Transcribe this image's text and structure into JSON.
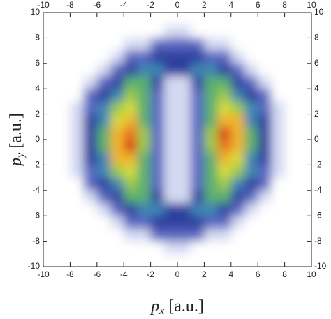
{
  "chart_data": {
    "type": "heatmap",
    "xlabel": {
      "symbol": "p",
      "subscript": "x",
      "unit": "[a.u.]"
    },
    "ylabel": {
      "symbol": "p",
      "subscript": "y",
      "unit": "[a.u.]"
    },
    "xlim": [
      -10,
      10
    ],
    "ylim": [
      -10,
      10
    ],
    "xticks": [
      -10,
      -8,
      -6,
      -4,
      -2,
      0,
      2,
      4,
      6,
      8,
      10
    ],
    "yticks": [
      -10,
      -8,
      -6,
      -4,
      -2,
      0,
      2,
      4,
      6,
      8,
      10
    ],
    "x": [
      -9.5,
      -8.5,
      -7.5,
      -6.5,
      -5.5,
      -4.5,
      -3.5,
      -2.5,
      -1.5,
      -0.5,
      0.5,
      1.5,
      2.5,
      3.5,
      4.5,
      5.5,
      6.5,
      7.5,
      8.5,
      9.5
    ],
    "y": [
      9.5,
      8.5,
      7.5,
      6.5,
      5.5,
      4.5,
      3.5,
      2.5,
      1.5,
      0.5,
      -0.5,
      -1.5,
      -2.5,
      -3.5,
      -4.5,
      -5.5,
      -6.5,
      -7.5,
      -8.5,
      -9.5
    ],
    "values": [
      [
        0,
        0,
        0,
        0,
        0,
        0,
        0,
        0,
        0,
        0,
        0,
        0,
        0,
        0,
        0,
        0,
        0,
        0,
        0,
        0
      ],
      [
        0,
        0,
        0,
        0,
        0,
        0,
        0,
        0,
        0,
        1,
        1,
        0,
        0,
        0,
        0,
        0,
        0,
        0,
        0,
        0
      ],
      [
        0,
        0,
        0,
        0,
        0,
        0,
        1,
        1,
        2,
        2,
        2,
        2,
        1,
        1,
        0,
        0,
        0,
        0,
        0,
        0
      ],
      [
        0,
        0,
        0,
        0,
        0,
        1,
        2,
        2,
        3,
        3,
        3,
        3,
        2,
        2,
        1,
        0,
        0,
        0,
        0,
        0
      ],
      [
        0,
        0,
        0,
        0,
        1,
        2,
        3,
        4,
        4,
        3,
        3,
        4,
        4,
        3,
        2,
        1,
        0,
        0,
        0,
        0
      ],
      [
        0,
        0,
        0,
        1,
        2,
        3,
        5,
        5,
        3,
        1,
        1,
        3,
        5,
        5,
        3,
        2,
        1,
        0,
        0,
        0
      ],
      [
        0,
        0,
        0,
        2,
        3,
        4,
        6,
        5,
        2,
        1,
        1,
        2,
        5,
        6,
        4,
        3,
        2,
        0,
        0,
        0
      ],
      [
        0,
        0,
        1,
        2,
        4,
        6,
        7,
        5,
        2,
        1,
        1,
        2,
        5,
        7,
        6,
        4,
        2,
        1,
        0,
        0
      ],
      [
        0,
        0,
        1,
        3,
        4,
        7,
        8,
        5,
        2,
        1,
        1,
        2,
        5,
        8,
        8,
        4,
        3,
        1,
        0,
        0
      ],
      [
        0,
        0,
        1,
        3,
        5,
        8,
        9,
        6,
        2,
        1,
        1,
        2,
        6,
        10,
        8,
        5,
        3,
        1,
        0,
        0
      ],
      [
        0,
        0,
        1,
        3,
        5,
        8,
        10,
        6,
        2,
        1,
        1,
        2,
        6,
        9,
        8,
        5,
        3,
        1,
        0,
        0
      ],
      [
        0,
        0,
        1,
        3,
        4,
        8,
        8,
        5,
        2,
        1,
        1,
        2,
        5,
        8,
        7,
        4,
        3,
        1,
        0,
        0
      ],
      [
        0,
        0,
        1,
        2,
        4,
        6,
        7,
        5,
        2,
        1,
        1,
        2,
        5,
        7,
        6,
        4,
        2,
        1,
        0,
        0
      ],
      [
        0,
        0,
        0,
        2,
        3,
        4,
        6,
        5,
        2,
        1,
        1,
        2,
        5,
        6,
        4,
        3,
        2,
        0,
        0,
        0
      ],
      [
        0,
        0,
        0,
        1,
        2,
        3,
        5,
        5,
        3,
        1,
        1,
        3,
        5,
        5,
        3,
        2,
        1,
        0,
        0,
        0
      ],
      [
        0,
        0,
        0,
        0,
        1,
        2,
        3,
        4,
        4,
        3,
        3,
        4,
        4,
        3,
        2,
        1,
        0,
        0,
        0,
        0
      ],
      [
        0,
        0,
        0,
        0,
        0,
        1,
        2,
        2,
        3,
        3,
        3,
        3,
        2,
        2,
        1,
        0,
        0,
        0,
        0,
        0
      ],
      [
        0,
        0,
        0,
        0,
        0,
        0,
        1,
        1,
        2,
        2,
        2,
        2,
        1,
        1,
        0,
        0,
        0,
        0,
        0,
        0
      ],
      [
        0,
        0,
        0,
        0,
        0,
        0,
        0,
        0,
        0,
        1,
        1,
        0,
        0,
        0,
        0,
        0,
        0,
        0,
        0,
        0
      ],
      [
        0,
        0,
        0,
        0,
        0,
        0,
        0,
        0,
        0,
        0,
        0,
        0,
        0,
        0,
        0,
        0,
        0,
        0,
        0,
        0
      ]
    ],
    "zlim": [
      0,
      10
    ],
    "colors": [
      "#ffffff",
      "#d4d9f2",
      "#5866c0",
      "#2f3f9e",
      "#3c86b4",
      "#5cb070",
      "#9ccb48",
      "#d6dc3a",
      "#f0b52e",
      "#e8741e",
      "#d83c18"
    ]
  }
}
